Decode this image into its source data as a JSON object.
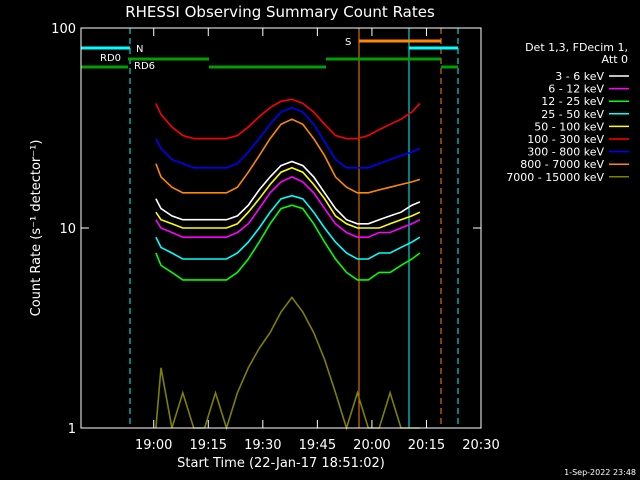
{
  "chart_data": {
    "type": "line",
    "title": "RHESSI Observing Summary Count Rates",
    "xlabel": "Start Time (22-Jan-17 18:51:02)",
    "ylabel": "Count Rate (s⁻¹ detector⁻¹)",
    "ylog": true,
    "ylim": [
      1,
      100
    ],
    "xlim_min": [
      -10,
      100
    ],
    "x_unit": "minutes after 18:50",
    "xticks": [
      {
        "v": 10,
        "label": "19:00"
      },
      {
        "v": 25,
        "label": "19:15"
      },
      {
        "v": 40,
        "label": "19:30"
      },
      {
        "v": 55,
        "label": "19:45"
      },
      {
        "v": 70,
        "label": "20:00"
      },
      {
        "v": 85,
        "label": "20:15"
      },
      {
        "v": 100,
        "label": "20:30"
      }
    ],
    "yticks": [
      {
        "v": 1,
        "label": "1"
      },
      {
        "v": 10,
        "label": "10"
      },
      {
        "v": 100,
        "label": "100"
      }
    ],
    "legend": {
      "placement": "right",
      "header": [
        "Det 1,3, FDecim 1,",
        "Att 0"
      ]
    },
    "series": [
      {
        "name": "3 - 6 keV",
        "color": "#ffffff",
        "x": [
          10.6,
          12,
          15,
          18,
          21,
          24,
          27,
          30,
          33,
          36,
          39,
          42,
          45,
          48,
          51,
          54,
          57,
          60,
          63,
          66,
          69,
          72,
          75,
          78,
          81,
          83.2
        ],
        "y": [
          14,
          12.5,
          11.5,
          11,
          11,
          11,
          11,
          11,
          11.5,
          13,
          15.5,
          18,
          20.5,
          21.5,
          20.5,
          18,
          15,
          12.5,
          11,
          10.5,
          10.5,
          11,
          11.5,
          12,
          13,
          13.5
        ]
      },
      {
        "name": "6 - 12 keV",
        "color": "#ff00ff",
        "x": [
          10.6,
          12,
          15,
          18,
          21,
          24,
          27,
          30,
          33,
          36,
          39,
          42,
          45,
          48,
          51,
          54,
          57,
          60,
          63,
          66,
          69,
          72,
          75,
          78,
          81,
          83.2
        ],
        "y": [
          11,
          10,
          9.5,
          9,
          9,
          9,
          9,
          9,
          9.5,
          10.5,
          12.5,
          15,
          17,
          18,
          17,
          15,
          12.5,
          10.5,
          9.5,
          9,
          9,
          9.5,
          9.5,
          10,
          10.5,
          11
        ]
      },
      {
        "name": "12 - 25 keV",
        "color": "#00ff00",
        "x": [
          10.6,
          12,
          15,
          18,
          21,
          24,
          27,
          30,
          33,
          36,
          39,
          42,
          45,
          48,
          51,
          54,
          57,
          60,
          63,
          66,
          69,
          72,
          75,
          78,
          81,
          83.2
        ],
        "y": [
          7.5,
          6.5,
          6,
          5.5,
          5.5,
          5.5,
          5.5,
          5.5,
          6,
          7,
          8.5,
          10.5,
          12.5,
          13,
          12.5,
          10.5,
          8.5,
          7,
          6,
          5.5,
          5.5,
          6,
          6,
          6.5,
          7,
          7.5
        ]
      },
      {
        "name": "25 - 50 keV",
        "color": "#00ffff",
        "x": [
          10.6,
          12,
          15,
          18,
          21,
          24,
          27,
          30,
          33,
          36,
          39,
          42,
          45,
          48,
          51,
          54,
          57,
          60,
          63,
          66,
          69,
          72,
          75,
          78,
          81,
          83.2
        ],
        "y": [
          9,
          8,
          7.5,
          7,
          7,
          7,
          7,
          7,
          7.5,
          8.5,
          10,
          12,
          14,
          14.5,
          14,
          12,
          10,
          8.5,
          7.5,
          7,
          7,
          7.5,
          7.5,
          8,
          8.5,
          9
        ]
      },
      {
        "name": "50 - 100 keV",
        "color": "#ffff00",
        "x": [
          10.6,
          12,
          15,
          18,
          21,
          24,
          27,
          30,
          33,
          36,
          39,
          42,
          45,
          48,
          51,
          54,
          57,
          60,
          63,
          66,
          69,
          72,
          75,
          78,
          81,
          83.2
        ],
        "y": [
          12,
          11,
          10.5,
          10,
          10,
          10,
          10,
          10,
          10.5,
          12,
          14,
          16.5,
          19,
          20,
          19,
          16.5,
          14,
          11.5,
          10.5,
          10,
          10,
          10,
          10.5,
          11,
          11.5,
          12
        ]
      },
      {
        "name": "100 - 300 keV",
        "color": "#ff0000",
        "x": [
          10.6,
          12,
          15,
          18,
          21,
          24,
          27,
          30,
          33,
          36,
          39,
          42,
          45,
          48,
          51,
          54,
          57,
          60,
          63,
          66,
          69,
          72,
          75,
          78,
          81,
          83.2
        ],
        "y": [
          42,
          37,
          32,
          29,
          28,
          28,
          28,
          28,
          29,
          32,
          36,
          40,
          43,
          44,
          42,
          38,
          33,
          29,
          28,
          28,
          29,
          31,
          33,
          35,
          38,
          42
        ]
      },
      {
        "name": "300 - 800 keV",
        "color": "#0000ff",
        "x": [
          10.6,
          12,
          15,
          18,
          21,
          24,
          27,
          30,
          33,
          36,
          39,
          42,
          45,
          48,
          51,
          54,
          57,
          60,
          63,
          66,
          69,
          72,
          75,
          78,
          81,
          83.2
        ],
        "y": [
          28,
          25,
          22,
          21,
          20,
          20,
          20,
          20,
          21,
          24,
          28,
          33,
          38,
          40,
          38,
          33,
          27,
          22,
          20,
          20,
          20,
          21,
          22,
          23,
          24,
          25
        ]
      },
      {
        "name": "800 - 7000 keV",
        "color": "#ff8800",
        "x": [
          10.6,
          12,
          15,
          18,
          21,
          24,
          27,
          30,
          33,
          36,
          39,
          42,
          45,
          48,
          51,
          54,
          57,
          60,
          63,
          66,
          69,
          72,
          75,
          78,
          81,
          83.2
        ],
        "y": [
          21,
          18,
          16,
          15,
          15,
          15,
          15,
          15,
          16,
          19,
          23,
          28,
          33,
          35,
          33,
          28,
          23,
          18,
          16,
          15,
          15,
          15.5,
          16,
          16.5,
          17,
          17.5
        ]
      },
      {
        "name": "7000 - 15000 keV",
        "color": "#808000",
        "x": [
          10.6,
          12,
          15,
          18,
          21,
          24,
          27,
          30,
          33,
          36,
          39,
          42,
          45,
          48,
          51,
          54,
          57,
          60,
          63,
          66,
          69,
          72,
          75,
          78,
          81,
          83.2
        ],
        "y": [
          1,
          2,
          1,
          1.5,
          1,
          1,
          1.5,
          1,
          1.5,
          2,
          2.5,
          3,
          3.8,
          4.5,
          3.8,
          3,
          2.2,
          1.5,
          1,
          1.5,
          1,
          1,
          1.5,
          1,
          1,
          1
        ]
      }
    ],
    "annotations": [
      {
        "text": "S",
        "color": "#ff8800"
      },
      {
        "text": "N",
        "color": "#00ffff"
      },
      {
        "text": "RD0",
        "color": "#00a000"
      },
      {
        "text": "RD6",
        "color": "#00a000"
      }
    ]
  },
  "footer": {
    "timestamp": "1-Sep-2022 23:48"
  }
}
